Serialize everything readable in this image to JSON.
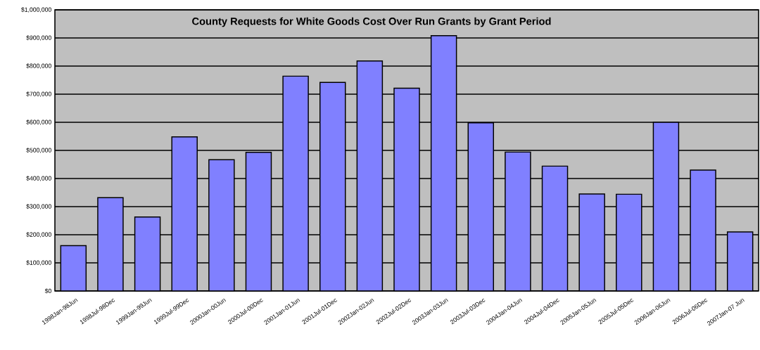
{
  "chart_data": {
    "type": "bar",
    "title": "County Requests for White Goods Cost Over Run Grants by Grant Period",
    "categories": [
      "1998Jan-98Jun",
      "1998Jul-98Dec",
      "1999Jan-99Jun",
      "1999Jul-99Dec",
      "2000Jan-00Jun",
      "2000Jul-00Dec",
      "2001Jan-01Jun",
      "2001Jul-01Dec",
      "2002Jan-02Jun",
      "2002Jul-02Dec",
      "2003Jan-03Jun",
      "2003Jul-03Dec",
      "2004Jan-04Jun",
      "2004Jul-04Dec",
      "2005Jan-05Jun",
      "2005Jul-05Dec",
      "2006Jan-06Jun",
      "2006Jul-06Dec",
      "2007Jan-07 Jun"
    ],
    "values": [
      161000,
      332000,
      263000,
      548000,
      467000,
      493000,
      764000,
      742000,
      818000,
      721000,
      908000,
      598000,
      494000,
      444000,
      345000,
      344000,
      600000,
      430000,
      210000
    ],
    "color": "#8080ff",
    "ylim": [
      0,
      1000000
    ],
    "yticks": [
      {
        "value": 0,
        "label": "$0"
      },
      {
        "value": 100000,
        "label": "$100,000"
      },
      {
        "value": 200000,
        "label": "$200,000"
      },
      {
        "value": 300000,
        "label": "$300,000"
      },
      {
        "value": 400000,
        "label": "$400,000"
      },
      {
        "value": 500000,
        "label": "$500,000"
      },
      {
        "value": 600000,
        "label": "$600,000"
      },
      {
        "value": 700000,
        "label": "$700,000"
      },
      {
        "value": 800000,
        "label": "$800,000"
      },
      {
        "value": 900000,
        "label": "$900,000"
      },
      {
        "value": 1000000,
        "label": "$1,000,000"
      }
    ],
    "grid": "y"
  }
}
